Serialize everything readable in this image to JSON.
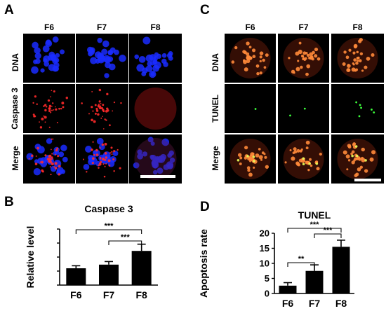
{
  "figure": {
    "panels": {
      "a": {
        "letter": "A",
        "columns": [
          "F6",
          "F7",
          "F8"
        ],
        "rows": [
          "DNA",
          "Caspase 3",
          "Merge"
        ]
      },
      "b": {
        "letter": "B"
      },
      "c": {
        "letter": "C",
        "columns": [
          "F6",
          "F7",
          "F8"
        ],
        "rows": [
          "DNA",
          "TUNEL",
          "Merge"
        ]
      },
      "d": {
        "letter": "D"
      }
    },
    "colors": {
      "dna_blue": "#1a2cff",
      "caspase_red": "#ff2a2a",
      "tunel_green": "#3cff3c",
      "nuclei_orange": "#ff8a3a",
      "bar_fill": "#000000"
    }
  },
  "chart_data": [
    {
      "type": "bar",
      "title": "Caspase 3",
      "xlabel": "",
      "ylabel": "Relative level",
      "categories": [
        "F6",
        "F7",
        "F8"
      ],
      "values": [
        6.0,
        7.3,
        12.2
      ],
      "errors": [
        0.9,
        1.1,
        2.4
      ],
      "ylim": [
        0,
        20
      ],
      "yticks": [],
      "significance": [
        {
          "from": "F6",
          "to": "F8",
          "label": "***"
        },
        {
          "from": "F7",
          "to": "F8",
          "label": "***"
        }
      ]
    },
    {
      "type": "bar",
      "title": "TUNEL",
      "xlabel": "",
      "ylabel": "Apoptosis rate",
      "categories": [
        "F6",
        "F7",
        "F8"
      ],
      "values": [
        2.6,
        7.5,
        15.5
      ],
      "errors": [
        1.0,
        2.0,
        2.2
      ],
      "ylim": [
        0,
        20
      ],
      "yticks": [
        "0",
        "5",
        "10",
        "15",
        "20"
      ],
      "significance": [
        {
          "from": "F6",
          "to": "F7",
          "label": "**"
        },
        {
          "from": "F6",
          "to": "F8",
          "label": "***"
        },
        {
          "from": "F7",
          "to": "F8",
          "label": "***"
        }
      ]
    }
  ]
}
